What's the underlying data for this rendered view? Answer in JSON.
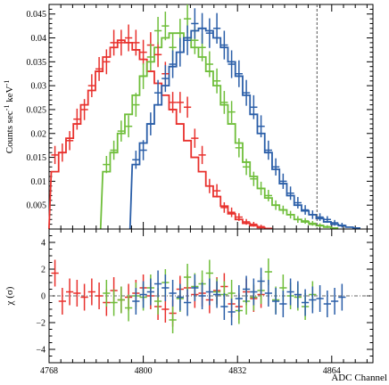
{
  "chart_data": [
    {
      "type": "line",
      "ylabel": "Counts sec$^{-1}$ keV$^{-1}$",
      "xlim": [
        4768,
        4878
      ],
      "ylim": [
        0,
        0.047
      ],
      "xticks": [
        4768,
        4800,
        4832,
        4864
      ],
      "yticks": [
        0.005,
        0.01,
        0.015,
        0.02,
        0.025,
        0.03,
        0.035,
        0.04,
        0.045
      ],
      "ytick_labels": [
        "0.005",
        "0.01",
        "0.015",
        "0.02",
        "0.025",
        "0.03",
        "0.035",
        "0.04",
        "0.045"
      ],
      "reference_line_x": 4859,
      "colors": {
        "red": "#e8312d",
        "green": "#6fbe3a",
        "blue": "#2a5ea8",
        "axes": "#000000"
      },
      "series": [
        {
          "color": "red",
          "bin_width": 2.5,
          "model_start": 4768,
          "model_start_value": 0.0005,
          "model_x": [
            4770,
            4772.5,
            4775,
            4777.5,
            4780,
            4782.5,
            4785,
            4787.5,
            4790,
            4792.5,
            4795,
            4797.5,
            4800,
            4802.5,
            4805,
            4807.5,
            4810,
            4812.5,
            4815,
            4817.5,
            4820,
            4822.5,
            4825,
            4827.5,
            4830,
            4832.5,
            4835,
            4837.5,
            4840,
            4842.5
          ],
          "model_y": [
            0.012,
            0.016,
            0.019,
            0.022,
            0.026,
            0.029,
            0.033,
            0.036,
            0.038,
            0.0395,
            0.039,
            0.0375,
            0.0355,
            0.033,
            0.0305,
            0.028,
            0.025,
            0.022,
            0.0185,
            0.015,
            0.012,
            0.009,
            0.0068,
            0.0048,
            0.0032,
            0.002,
            0.0012,
            0.0007,
            0.0003,
            0.0001
          ],
          "points_x": [
            4770,
            4772.5,
            4775,
            4777.5,
            4780,
            4782.5,
            4785,
            4787.5,
            4790,
            4792.5,
            4795,
            4797.5,
            4800,
            4802.5,
            4805,
            4807.5,
            4810,
            4812.5,
            4815,
            4817.5,
            4820,
            4822.5,
            4825,
            4827.5,
            4830,
            4832.5,
            4835,
            4837.5,
            4840
          ],
          "points_y": [
            0.0155,
            0.016,
            0.0185,
            0.023,
            0.025,
            0.03,
            0.0335,
            0.035,
            0.039,
            0.039,
            0.04,
            0.039,
            0.037,
            0.0385,
            0.0365,
            0.0325,
            0.0265,
            0.0265,
            0.0255,
            0.019,
            0.0155,
            0.009,
            0.008,
            0.0045,
            0.0035,
            0.0025,
            0.0015,
            0.001,
            0.0005
          ],
          "points_err": [
            0.0019,
            0.0019,
            0.002,
            0.0022,
            0.0022,
            0.0024,
            0.0025,
            0.0026,
            0.0027,
            0.0027,
            0.0028,
            0.0027,
            0.0026,
            0.0027,
            0.0026,
            0.0025,
            0.0022,
            0.0022,
            0.0022,
            0.002,
            0.0019,
            0.0015,
            0.0014,
            0.0011,
            0.001,
            0.0008,
            0.0006,
            0.0005,
            0.0004
          ]
        },
        {
          "color": "green",
          "bin_width": 2.5,
          "model_start": 4785.5,
          "model_start_value": 0.0,
          "model_x": [
            4787.5,
            4790,
            4792.5,
            4795,
            4797.5,
            4800,
            4802.5,
            4805,
            4807.5,
            4810,
            4812.5,
            4815,
            4817.5,
            4820,
            4822.5,
            4825,
            4827.5,
            4830,
            4832.5,
            4835,
            4837.5,
            4840,
            4842.5,
            4845,
            4847.5,
            4850,
            4852.5,
            4855,
            4857.5,
            4860,
            4862.5,
            4865
          ],
          "model_y": [
            0.012,
            0.016,
            0.02,
            0.024,
            0.028,
            0.032,
            0.035,
            0.038,
            0.04,
            0.041,
            0.041,
            0.04,
            0.038,
            0.036,
            0.033,
            0.03,
            0.026,
            0.022,
            0.018,
            0.014,
            0.011,
            0.0085,
            0.0065,
            0.005,
            0.004,
            0.003,
            0.002,
            0.0015,
            0.001,
            0.0007,
            0.0004,
            0.0002
          ],
          "points_x": [
            4787.5,
            4790,
            4792.5,
            4795,
            4797.5,
            4800,
            4802.5,
            4805,
            4807.5,
            4810,
            4812.5,
            4815,
            4817.5,
            4820,
            4822.5,
            4825,
            4827.5,
            4830,
            4832.5,
            4835,
            4837.5,
            4840,
            4842.5,
            4845,
            4847.5,
            4850,
            4852.5,
            4855,
            4857.5,
            4860,
            4862.5
          ],
          "points_y": [
            0.0135,
            0.0165,
            0.0205,
            0.0215,
            0.026,
            0.032,
            0.036,
            0.0415,
            0.0425,
            0.038,
            0.041,
            0.044,
            0.0395,
            0.038,
            0.0345,
            0.031,
            0.0265,
            0.0245,
            0.017,
            0.013,
            0.0105,
            0.0085,
            0.007,
            0.005,
            0.004,
            0.003,
            0.002,
            0.0017,
            0.0012,
            0.0008,
            0.0005
          ],
          "points_err": [
            0.0018,
            0.002,
            0.0022,
            0.0023,
            0.0025,
            0.0027,
            0.0028,
            0.0029,
            0.003,
            0.0029,
            0.003,
            0.003,
            0.0029,
            0.0029,
            0.0027,
            0.0026,
            0.0024,
            0.0023,
            0.002,
            0.0017,
            0.0015,
            0.0014,
            0.0012,
            0.001,
            0.0009,
            0.0008,
            0.0007,
            0.0006,
            0.0005,
            0.0004,
            0.0003
          ]
        },
        {
          "color": "blue",
          "bin_width": 2.5,
          "model_start": 4795.5,
          "model_start_value": 0.0,
          "model_x": [
            4797.5,
            4800,
            4802.5,
            4805,
            4807.5,
            4810,
            4812.5,
            4815,
            4817.5,
            4820,
            4822.5,
            4825,
            4827.5,
            4830,
            4832.5,
            4835,
            4837.5,
            4840,
            4842.5,
            4845,
            4847.5,
            4850,
            4852.5,
            4855,
            4857.5,
            4860,
            4862.5,
            4865,
            4867.5,
            4870,
            4872.5
          ],
          "model_y": [
            0.0135,
            0.018,
            0.022,
            0.026,
            0.03,
            0.034,
            0.037,
            0.04,
            0.0415,
            0.042,
            0.0415,
            0.04,
            0.038,
            0.035,
            0.032,
            0.028,
            0.024,
            0.02,
            0.016,
            0.0125,
            0.0095,
            0.007,
            0.005,
            0.0038,
            0.003,
            0.0022,
            0.0015,
            0.001,
            0.0007,
            0.0004,
            0.0002
          ],
          "points_x": [
            4797.5,
            4800,
            4802.5,
            4805,
            4807.5,
            4810,
            4812.5,
            4815,
            4817.5,
            4820,
            4822.5,
            4825,
            4827.5,
            4830,
            4832.5,
            4835,
            4837.5,
            4840,
            4842.5,
            4845,
            4847.5,
            4850,
            4852.5,
            4855,
            4857.5,
            4860,
            4862.5,
            4865,
            4867.5
          ],
          "points_y": [
            0.0145,
            0.0165,
            0.022,
            0.0285,
            0.0315,
            0.0345,
            0.037,
            0.0395,
            0.043,
            0.042,
            0.041,
            0.042,
            0.0385,
            0.0345,
            0.0325,
            0.0285,
            0.0255,
            0.0215,
            0.0165,
            0.013,
            0.01,
            0.0075,
            0.0055,
            0.004,
            0.003,
            0.0025,
            0.002,
            0.0013,
            0.0008
          ],
          "points_err": [
            0.0019,
            0.0021,
            0.0024,
            0.0027,
            0.0028,
            0.0029,
            0.003,
            0.0031,
            0.0032,
            0.0032,
            0.0031,
            0.0032,
            0.003,
            0.0029,
            0.0028,
            0.0027,
            0.0025,
            0.0023,
            0.002,
            0.0018,
            0.0016,
            0.0014,
            0.0012,
            0.001,
            0.0009,
            0.0008,
            0.0007,
            0.0006,
            0.0005
          ]
        }
      ]
    },
    {
      "type": "scatter",
      "ylabel": "χ (σ)",
      "xlabel": "ADC Channel",
      "xlim": [
        4768,
        4878
      ],
      "ylim": [
        -5,
        5
      ],
      "xticks": [
        4768,
        4800,
        4832,
        4864
      ],
      "yticks": [
        -4,
        -2,
        0,
        2,
        4
      ],
      "zero_line": true,
      "series": [
        {
          "color": "red",
          "bin_width": 2.5,
          "x": [
            4770,
            4772.5,
            4775,
            4777.5,
            4780,
            4782.5,
            4785,
            4787.5,
            4790,
            4792.5,
            4795,
            4797.5,
            4800,
            4802.5,
            4805,
            4807.5,
            4810,
            4812.5,
            4815,
            4817.5,
            4820,
            4822.5,
            4825,
            4827.5,
            4830,
            4832.5,
            4835,
            4837.5,
            4840
          ],
          "y": [
            1.7,
            -0.4,
            0.3,
            0.2,
            -0.1,
            0.3,
            0.0,
            -0.5,
            0.4,
            -0.3,
            -0.1,
            0.2,
            0.6,
            0.0,
            -0.8,
            -1.0,
            -1.3,
            0.5,
            0.6,
            0.1,
            0.2,
            -0.3,
            0.4,
            0.7,
            -0.6,
            -0.8,
            0.3,
            -0.2,
            0.1
          ]
        },
        {
          "color": "green",
          "bin_width": 2.5,
          "x": [
            4787.5,
            4790,
            4792.5,
            4795,
            4797.5,
            4800,
            4802.5,
            4805,
            4807.5,
            4810,
            4812.5,
            4815,
            4817.5,
            4820,
            4822.5,
            4825,
            4827.5,
            4830,
            4832.5,
            4835,
            4837.5,
            4840,
            4842.5,
            4845,
            4847.5,
            4850,
            4852.5,
            4855,
            4857.5
          ],
          "y": [
            0.2,
            -0.5,
            -0.3,
            -0.9,
            0.0,
            -0.1,
            0.6,
            -0.4,
            1.0,
            -1.8,
            -0.2,
            1.4,
            0.7,
            0.9,
            1.7,
            0.3,
            0.1,
            0.2,
            -1.1,
            -0.4,
            -0.1,
            0.4,
            1.8,
            -0.3,
            0.6,
            0.0,
            -0.1,
            -0.8,
            0.1
          ]
        },
        {
          "color": "blue",
          "bin_width": 2.5,
          "x": [
            4797.5,
            4800,
            4802.5,
            4805,
            4807.5,
            4810,
            4812.5,
            4815,
            4817.5,
            4820,
            4822.5,
            4825,
            4827.5,
            4830,
            4832.5,
            4835,
            4837.5,
            4840,
            4842.5,
            4845,
            4847.5,
            4850,
            4852.5,
            4855,
            4857.5,
            4860,
            4862.5,
            4865,
            4867.5
          ],
          "y": [
            -0.4,
            0.1,
            0.3,
            0.9,
            0.6,
            0.2,
            -0.1,
            -0.5,
            0.6,
            0.0,
            0.3,
            0.1,
            -0.8,
            -1.2,
            -0.2,
            0.5,
            0.3,
            1.1,
            0.2,
            -0.4,
            -0.6,
            0.3,
            0.1,
            -0.5,
            -0.3,
            -0.2,
            -0.6,
            -0.4,
            -0.1
          ]
        }
      ]
    }
  ]
}
